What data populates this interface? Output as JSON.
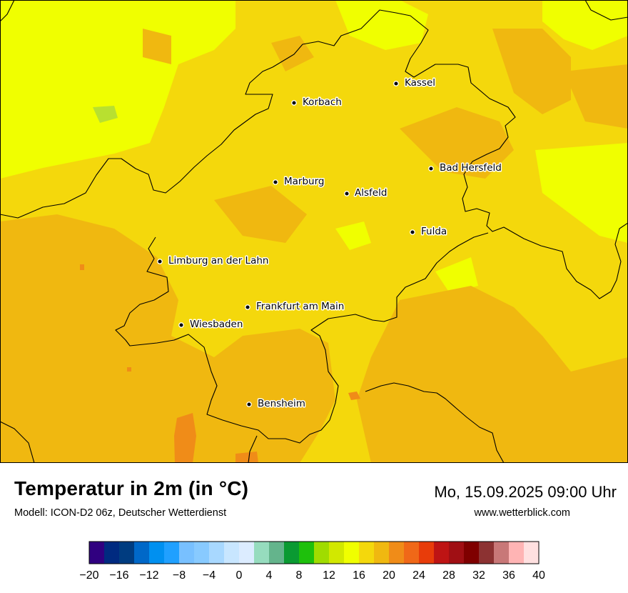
{
  "header": {
    "title": "Temperatur in 2m (in °C)",
    "model": "Modell: ICON-D2 06z, Deutscher Wetterdienst",
    "datetime": "Mo, 15.09.2025 09:00 Uhr",
    "website": "www.wetterblick.com"
  },
  "map": {
    "cities": [
      "Kassel",
      "Korbach",
      "Bad Hersfeld",
      "Marburg",
      "Alsfeld",
      "Fulda",
      "Limburg an der Lahn",
      "Frankfurt am Main",
      "Wiesbaden",
      "Bensheim"
    ],
    "colors": {
      "base": "#f4d80c",
      "warm": "#f0b810",
      "warmer": "#f08c18",
      "cool": "#f0ff00",
      "coolest": "#b8e030",
      "border": "#000000"
    }
  },
  "legend": {
    "colors": [
      "#300080",
      "#002a80",
      "#003c80",
      "#0068c8",
      "#0090f0",
      "#20a0ff",
      "#78c0ff",
      "#88caff",
      "#a8d8ff",
      "#c8e6ff",
      "#dcecff",
      "#96dcbe",
      "#64b48c",
      "#0a9a32",
      "#1ec00c",
      "#a0dc00",
      "#d2e800",
      "#f0ff00",
      "#f4d80c",
      "#f0b810",
      "#f08c18",
      "#f06818",
      "#e83c0a",
      "#be1414",
      "#a00f14",
      "#7f0000",
      "#8c3232",
      "#c87878",
      "#ffb4b4",
      "#ffe0e0"
    ],
    "tick_labels": [
      "−20",
      "−16",
      "−12",
      "−8",
      "−4",
      "0",
      "4",
      "8",
      "12",
      "16",
      "20",
      "24",
      "28",
      "32",
      "36",
      "40"
    ],
    "range": [
      -20,
      40
    ],
    "step": 2
  }
}
